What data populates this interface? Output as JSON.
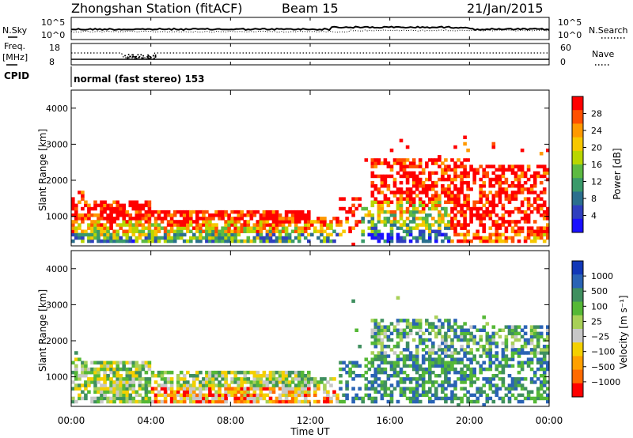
{
  "header": {
    "station": "Zhongshan Station (fitACF)",
    "beam": "Beam 15",
    "date": "21/Jan/2015"
  },
  "top_panels": {
    "nsky_label": "N.Sky",
    "nsearch_label": "N.Search",
    "nsky_ticks": [
      "10^5",
      "10^0"
    ],
    "nsearch_ticks": [
      "10^5",
      "10^0"
    ],
    "freq_label_1": "Freq.",
    "freq_label_2": "[MHz]",
    "freq_ticks": [
      "18",
      "8"
    ],
    "nave_label": "Nave",
    "nave_ticks": [
      "60",
      "0"
    ],
    "cpid_label": "CPID",
    "cpid_text": "normal (fast stereo) 153"
  },
  "chart_data": [
    {
      "type": "heatmap",
      "name": "power",
      "ylabel": "Slant Range [km]",
      "yticks": [
        "4000",
        "3000",
        "2000",
        "1000"
      ],
      "ylim": [
        180,
        4500
      ],
      "xlim": [
        0,
        24
      ],
      "colorbar_label": "Power [dB]",
      "colorbar_ticks": [
        "28",
        "24",
        "20",
        "16",
        "12",
        "8",
        "4"
      ],
      "colorbar_colors": [
        "#ff0000",
        "#ff5000",
        "#ff9900",
        "#f7c800",
        "#b9d600",
        "#5dba42",
        "#3a9a6a",
        "#2b6f8e",
        "#2f3fbf",
        "#1a10ff"
      ],
      "grid": false
    },
    {
      "type": "heatmap",
      "name": "velocity",
      "ylabel": "Slant Range [km]",
      "yticks": [
        "4000",
        "3000",
        "2000",
        "1000"
      ],
      "ylim": [
        180,
        4500
      ],
      "xlim": [
        0,
        24
      ],
      "colorbar_label": "Velocity [m s⁻¹]",
      "colorbar_ticks": [
        "1000",
        "500",
        "100",
        "25",
        "−25",
        "−100",
        "−500",
        "−1000"
      ],
      "colorbar_colors": [
        "#1238b8",
        "#2a63b5",
        "#3f8f5f",
        "#55b836",
        "#a8d058",
        "#c8c8c8",
        "#f4d000",
        "#ffa000",
        "#ff6a00",
        "#ff0000"
      ],
      "grid": false
    }
  ],
  "xaxis": {
    "ticks": [
      "00:00",
      "04:00",
      "08:00",
      "12:00",
      "16:00",
      "20:00",
      "00:00"
    ],
    "label": "Time UT"
  }
}
